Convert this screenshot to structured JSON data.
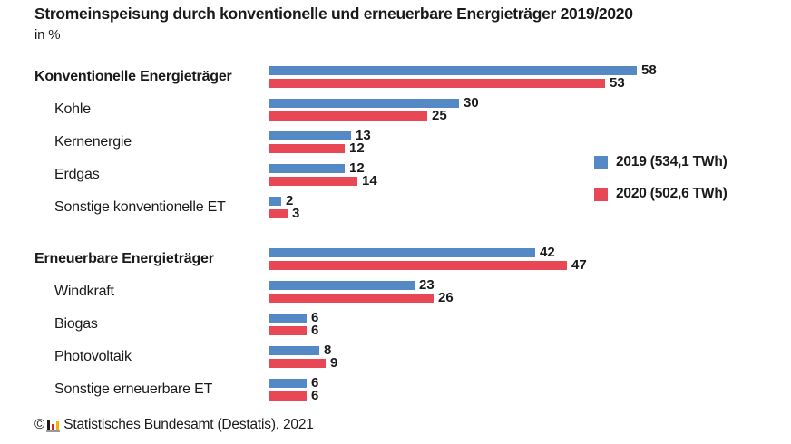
{
  "header": {
    "title": "Stromeinspeisung durch konventionelle und erneuerbare Energieträger 2019/2020",
    "subtitle": "in %"
  },
  "legend": {
    "items": [
      {
        "label": "2019 (534,1 TWh)",
        "color": "#5589C6"
      },
      {
        "label": "2020 (502,6 TWh)",
        "color": "#E84855"
      }
    ]
  },
  "footer": {
    "copyright": "©",
    "logo_icon": "destatis-bar-chart-logo",
    "logo_colors": [
      "#1a1a1a",
      "#d02a28",
      "#f0b500",
      "#9a9a9a"
    ],
    "source": "Statistisches Bundesamt (Destatis), 2021"
  },
  "chart_data": {
    "type": "bar",
    "orientation": "horizontal",
    "title": "Stromeinspeisung durch konventionelle und erneuerbare Energieträger 2019/2020",
    "unit": "in %",
    "xlim": [
      0,
      60
    ],
    "grid": false,
    "value_labels": true,
    "legend_position": "right",
    "categories": [
      "Konventionelle Energieträger",
      "Kohle",
      "Kernenergie",
      "Erdgas",
      "Sonstige konventionelle ET",
      "Erneuerbare Energieträger",
      "Windkraft",
      "Biogas",
      "Photovoltaik",
      "Sonstige erneuerbare ET"
    ],
    "group_header_indices": [
      0,
      5
    ],
    "section_break_index": 5,
    "series": [
      {
        "name": "2019 (534,1 TWh)",
        "color": "#5589C6",
        "values": [
          58,
          30,
          13,
          12,
          2,
          42,
          23,
          6,
          8,
          6
        ]
      },
      {
        "name": "2020 (502,6 TWh)",
        "color": "#E84855",
        "values": [
          53,
          25,
          12,
          14,
          3,
          47,
          26,
          6,
          9,
          6
        ]
      }
    ]
  }
}
